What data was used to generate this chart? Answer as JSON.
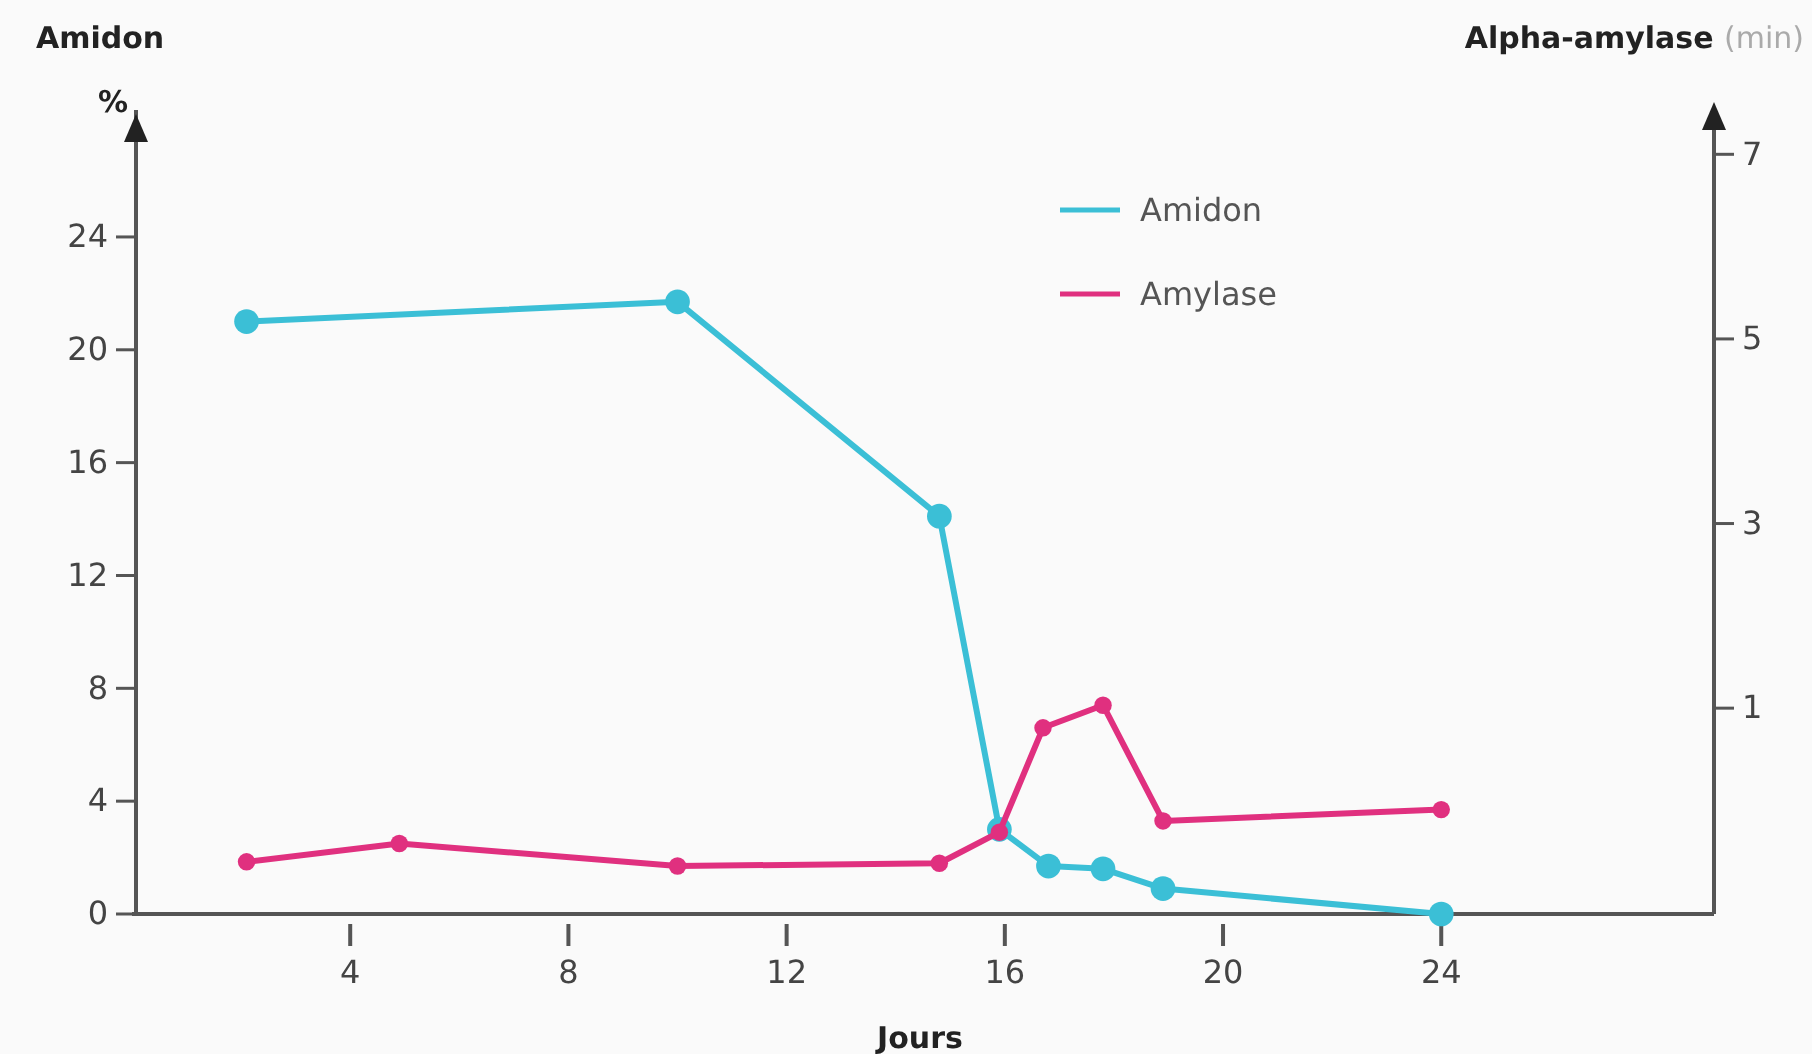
{
  "chart_data": {
    "type": "line",
    "xlabel": "Jours",
    "ylabel": "Amidon",
    "y2label": "Alpha-amylase (min)",
    "annotations": [
      "%"
    ],
    "xlim": [
      0,
      29
    ],
    "xticks": [
      4,
      8,
      12,
      16,
      20,
      24
    ],
    "ylim": [
      0,
      28.5
    ],
    "yticks": [
      0,
      4,
      8,
      12,
      16,
      20,
      24
    ],
    "y2lim": [
      -1.23,
      7.48
    ],
    "y2ticks": [
      1,
      3,
      5,
      7
    ],
    "grid": false,
    "legend": "top",
    "marker": "circle",
    "line_style": "solid",
    "series": [
      {
        "name": "Amidon",
        "color": "#3bbfd6",
        "x": [
          2.1,
          10,
          14.8,
          15.9,
          16.8,
          17.8,
          18.9,
          24
        ],
        "values": [
          21,
          21.7,
          14.1,
          3,
          1.7,
          1.6,
          0.9,
          0
        ]
      },
      {
        "name": "Amylase",
        "color": "#e0307f",
        "x": [
          2.1,
          4.9,
          10,
          14.8,
          15.9,
          16.7,
          17.8,
          18.9,
          24
        ],
        "values": [
          1.85,
          2.5,
          1.7,
          1.8,
          2.9,
          6.6,
          7.4,
          3.3,
          3.7
        ]
      }
    ]
  }
}
